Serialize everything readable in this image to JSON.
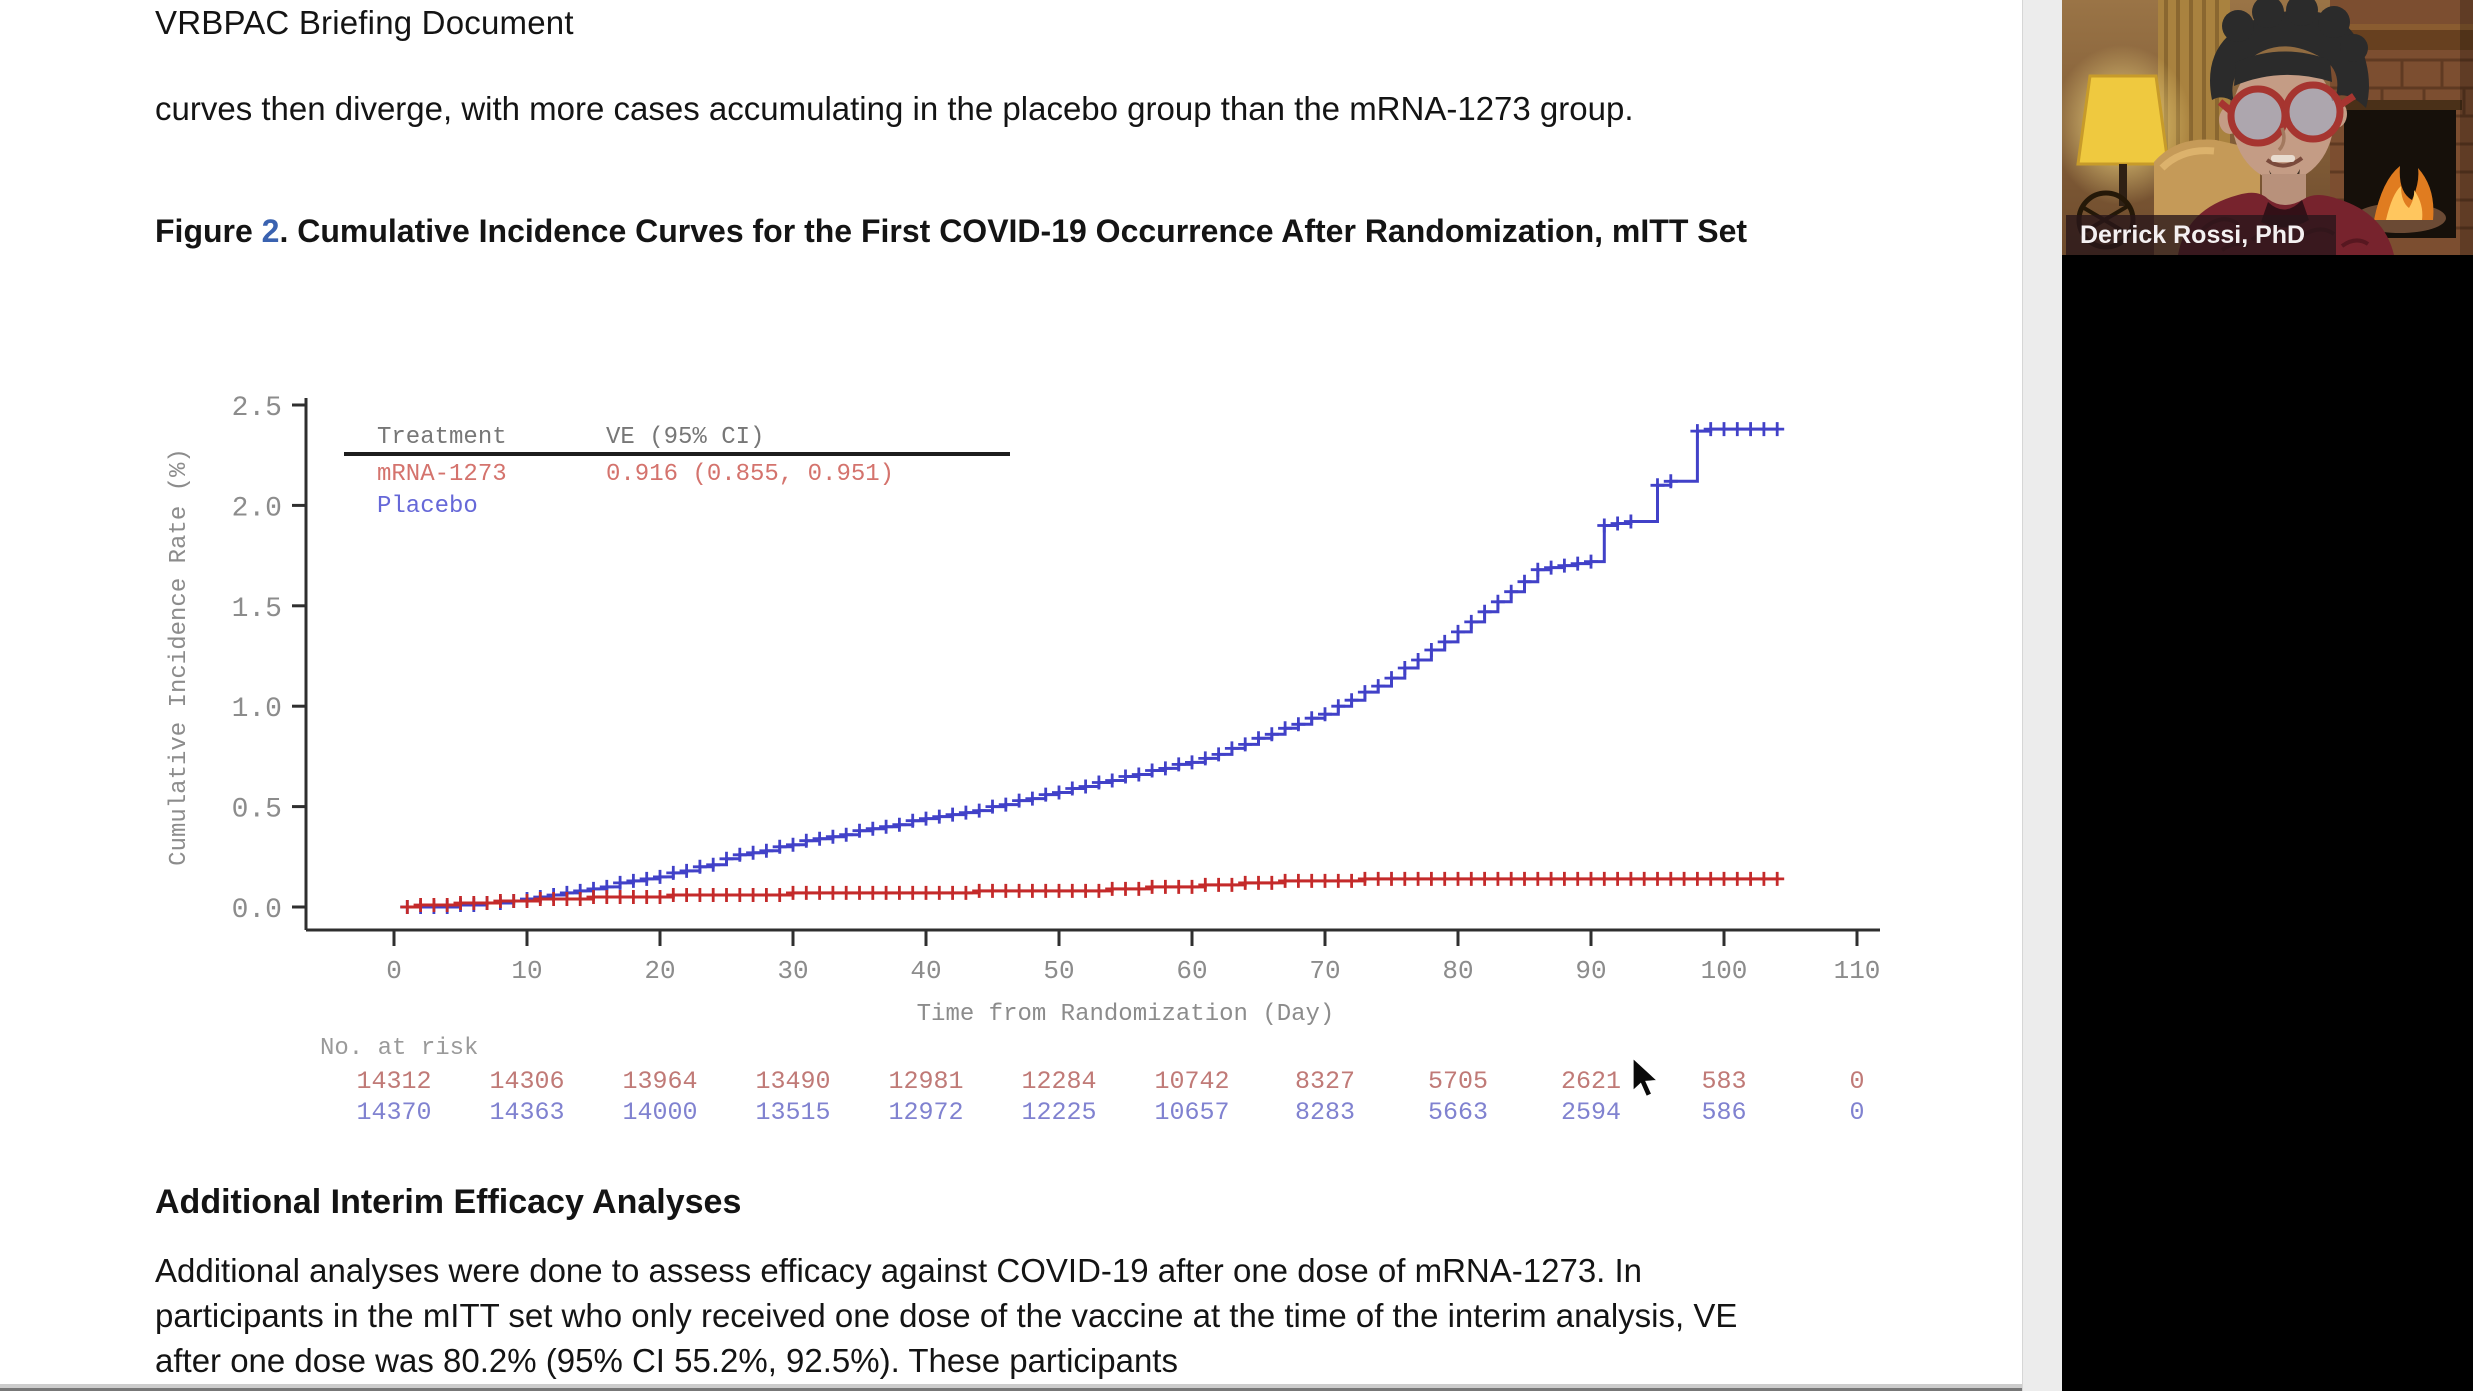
{
  "document": {
    "header": "VRBPAC Briefing Document",
    "para1": "curves then diverge, with more cases accumulating in the placebo group than the mRNA-1273 group.",
    "figure_caption": {
      "prefix": "Figure ",
      "number": "2",
      "rest": ". Cumulative Incidence Curves for the First COVID-19 Occurrence After Randomization, mITT Set"
    },
    "section_heading": "Additional Interim Efficacy Analyses",
    "para2": "Additional analyses were done to assess efficacy against COVID-19 after one dose of mRNA-1273. In participants in the mITT set who only received one dose of the vaccine at the time of the interim analysis, VE after one dose was 80.2% (95% CI 55.2%, 92.5%). These participants"
  },
  "video": {
    "participant_name": "Derrick Rossi, PhD"
  },
  "chart_data": {
    "type": "line",
    "subtype": "step-cumulative-incidence-kaplan-meier",
    "title": "",
    "xlabel": "Time from Randomization (Day)",
    "ylabel": "Cumulative Incidence Rate (%)",
    "xlim": [
      0,
      110
    ],
    "ylim": [
      0,
      2.5
    ],
    "xticks": [
      0,
      10,
      20,
      30,
      40,
      50,
      60,
      70,
      80,
      90,
      100,
      110
    ],
    "yticks": [
      0.0,
      0.5,
      1.0,
      1.5,
      2.0,
      2.5
    ],
    "grid": false,
    "axis_color": "#2f2f2f",
    "tick_label_color": "#8c8c8c",
    "legend": {
      "position": "top-left-inside",
      "col1_header": "Treatment",
      "col2_header": "VE (95% CI)",
      "header_color": "#777777"
    },
    "series": [
      {
        "name": "mRNA-1273",
        "color": "#c42a2a",
        "legend_color": "#d4736d",
        "ve_ci": "0.916 (0.855, 0.951)",
        "points": [
          [
            1,
            0
          ],
          [
            2,
            0.01
          ],
          [
            3,
            0.01
          ],
          [
            4,
            0.01
          ],
          [
            5,
            0.02
          ],
          [
            6,
            0.02
          ],
          [
            7,
            0.02
          ],
          [
            8,
            0.03
          ],
          [
            9,
            0.03
          ],
          [
            10,
            0.03
          ],
          [
            11,
            0.04
          ],
          [
            12,
            0.04
          ],
          [
            13,
            0.04
          ],
          [
            14,
            0.04
          ],
          [
            15,
            0.05
          ],
          [
            16,
            0.05
          ],
          [
            17,
            0.05
          ],
          [
            18,
            0.05
          ],
          [
            19,
            0.05
          ],
          [
            20,
            0.05
          ],
          [
            21,
            0.06
          ],
          [
            22,
            0.06
          ],
          [
            23,
            0.06
          ],
          [
            24,
            0.06
          ],
          [
            25,
            0.06
          ],
          [
            26,
            0.06
          ],
          [
            27,
            0.06
          ],
          [
            28,
            0.06
          ],
          [
            29,
            0.06
          ],
          [
            30,
            0.07
          ],
          [
            31,
            0.07
          ],
          [
            32,
            0.07
          ],
          [
            33,
            0.07
          ],
          [
            34,
            0.07
          ],
          [
            35,
            0.07
          ],
          [
            36,
            0.07
          ],
          [
            37,
            0.07
          ],
          [
            38,
            0.07
          ],
          [
            39,
            0.07
          ],
          [
            40,
            0.07
          ],
          [
            41,
            0.07
          ],
          [
            42,
            0.07
          ],
          [
            43,
            0.07
          ],
          [
            44,
            0.08
          ],
          [
            45,
            0.08
          ],
          [
            46,
            0.08
          ],
          [
            47,
            0.08
          ],
          [
            48,
            0.08
          ],
          [
            49,
            0.08
          ],
          [
            50,
            0.08
          ],
          [
            51,
            0.08
          ],
          [
            52,
            0.08
          ],
          [
            53,
            0.08
          ],
          [
            54,
            0.09
          ],
          [
            55,
            0.09
          ],
          [
            56,
            0.09
          ],
          [
            57,
            0.1
          ],
          [
            58,
            0.1
          ],
          [
            59,
            0.1
          ],
          [
            60,
            0.1
          ],
          [
            61,
            0.11
          ],
          [
            62,
            0.11
          ],
          [
            63,
            0.11
          ],
          [
            64,
            0.12
          ],
          [
            65,
            0.12
          ],
          [
            66,
            0.12
          ],
          [
            67,
            0.13
          ],
          [
            68,
            0.13
          ],
          [
            69,
            0.13
          ],
          [
            70,
            0.13
          ],
          [
            71,
            0.13
          ],
          [
            72,
            0.13
          ],
          [
            73,
            0.14
          ],
          [
            74,
            0.14
          ],
          [
            75,
            0.14
          ],
          [
            76,
            0.14
          ],
          [
            77,
            0.14
          ],
          [
            78,
            0.14
          ],
          [
            79,
            0.14
          ],
          [
            80,
            0.14
          ],
          [
            81,
            0.14
          ],
          [
            82,
            0.14
          ],
          [
            83,
            0.14
          ],
          [
            84,
            0.14
          ],
          [
            85,
            0.14
          ],
          [
            86,
            0.14
          ],
          [
            87,
            0.14
          ],
          [
            88,
            0.14
          ],
          [
            89,
            0.14
          ],
          [
            90,
            0.14
          ],
          [
            91,
            0.14
          ],
          [
            92,
            0.14
          ],
          [
            93,
            0.14
          ],
          [
            94,
            0.14
          ],
          [
            95,
            0.14
          ],
          [
            96,
            0.14
          ],
          [
            97,
            0.14
          ],
          [
            98,
            0.14
          ],
          [
            99,
            0.14
          ],
          [
            100,
            0.14
          ],
          [
            101,
            0.14
          ],
          [
            102,
            0.14
          ],
          [
            103,
            0.14
          ],
          [
            104,
            0.14
          ]
        ]
      },
      {
        "name": "Placebo",
        "color": "#4141c8",
        "legend_color": "#6668d8",
        "ve_ci": "",
        "points": [
          [
            1,
            0
          ],
          [
            2,
            0
          ],
          [
            3,
            0
          ],
          [
            4,
            0
          ],
          [
            5,
            0.01
          ],
          [
            6,
            0.01
          ],
          [
            7,
            0.02
          ],
          [
            8,
            0.02
          ],
          [
            9,
            0.03
          ],
          [
            10,
            0.04
          ],
          [
            11,
            0.05
          ],
          [
            12,
            0.06
          ],
          [
            13,
            0.07
          ],
          [
            14,
            0.08
          ],
          [
            15,
            0.09
          ],
          [
            16,
            0.1
          ],
          [
            17,
            0.12
          ],
          [
            18,
            0.13
          ],
          [
            19,
            0.14
          ],
          [
            20,
            0.15
          ],
          [
            21,
            0.17
          ],
          [
            22,
            0.18
          ],
          [
            23,
            0.2
          ],
          [
            24,
            0.21
          ],
          [
            25,
            0.24
          ],
          [
            26,
            0.26
          ],
          [
            27,
            0.27
          ],
          [
            28,
            0.28
          ],
          [
            29,
            0.3
          ],
          [
            30,
            0.31
          ],
          [
            31,
            0.33
          ],
          [
            32,
            0.34
          ],
          [
            33,
            0.35
          ],
          [
            34,
            0.36
          ],
          [
            35,
            0.38
          ],
          [
            36,
            0.39
          ],
          [
            37,
            0.4
          ],
          [
            38,
            0.41
          ],
          [
            39,
            0.43
          ],
          [
            40,
            0.44
          ],
          [
            41,
            0.45
          ],
          [
            42,
            0.46
          ],
          [
            43,
            0.47
          ],
          [
            44,
            0.48
          ],
          [
            45,
            0.5
          ],
          [
            46,
            0.51
          ],
          [
            47,
            0.53
          ],
          [
            48,
            0.54
          ],
          [
            49,
            0.56
          ],
          [
            50,
            0.57
          ],
          [
            51,
            0.59
          ],
          [
            52,
            0.6
          ],
          [
            53,
            0.62
          ],
          [
            54,
            0.63
          ],
          [
            55,
            0.65
          ],
          [
            56,
            0.66
          ],
          [
            57,
            0.68
          ],
          [
            58,
            0.69
          ],
          [
            59,
            0.71
          ],
          [
            60,
            0.72
          ],
          [
            61,
            0.74
          ],
          [
            62,
            0.76
          ],
          [
            63,
            0.79
          ],
          [
            64,
            0.81
          ],
          [
            65,
            0.84
          ],
          [
            66,
            0.86
          ],
          [
            67,
            0.89
          ],
          [
            68,
            0.91
          ],
          [
            69,
            0.94
          ],
          [
            70,
            0.96
          ],
          [
            71,
            1.0
          ],
          [
            72,
            1.03
          ],
          [
            73,
            1.07
          ],
          [
            74,
            1.1
          ],
          [
            75,
            1.14
          ],
          [
            76,
            1.19
          ],
          [
            77,
            1.23
          ],
          [
            78,
            1.28
          ],
          [
            79,
            1.32
          ],
          [
            80,
            1.37
          ],
          [
            81,
            1.42
          ],
          [
            82,
            1.47
          ],
          [
            83,
            1.52
          ],
          [
            84,
            1.57
          ],
          [
            85,
            1.62
          ],
          [
            86,
            1.68
          ],
          [
            87,
            1.69
          ],
          [
            88,
            1.7
          ],
          [
            89,
            1.71
          ],
          [
            90,
            1.72
          ],
          [
            91,
            1.9
          ],
          [
            92,
            1.91
          ],
          [
            93,
            1.92
          ],
          [
            95,
            2.1
          ],
          [
            96,
            2.12
          ],
          [
            98,
            2.37
          ],
          [
            99,
            2.38
          ],
          [
            100,
            2.38
          ],
          [
            101,
            2.38
          ],
          [
            102,
            2.38
          ],
          [
            103,
            2.38
          ],
          [
            104,
            2.38
          ]
        ]
      }
    ],
    "no_at_risk": {
      "label": "No. at risk",
      "label_color": "#9a9a9a",
      "rows": [
        {
          "series": "mRNA-1273",
          "color": "#c07a77",
          "values": [
            14312,
            14306,
            13964,
            13490,
            12981,
            12284,
            10742,
            8327,
            5705,
            2621,
            583,
            0
          ]
        },
        {
          "series": "Placebo",
          "color": "#8082d0",
          "values": [
            14370,
            14363,
            14000,
            13515,
            12972,
            12225,
            10657,
            8283,
            5663,
            2594,
            586,
            0
          ]
        }
      ]
    }
  }
}
